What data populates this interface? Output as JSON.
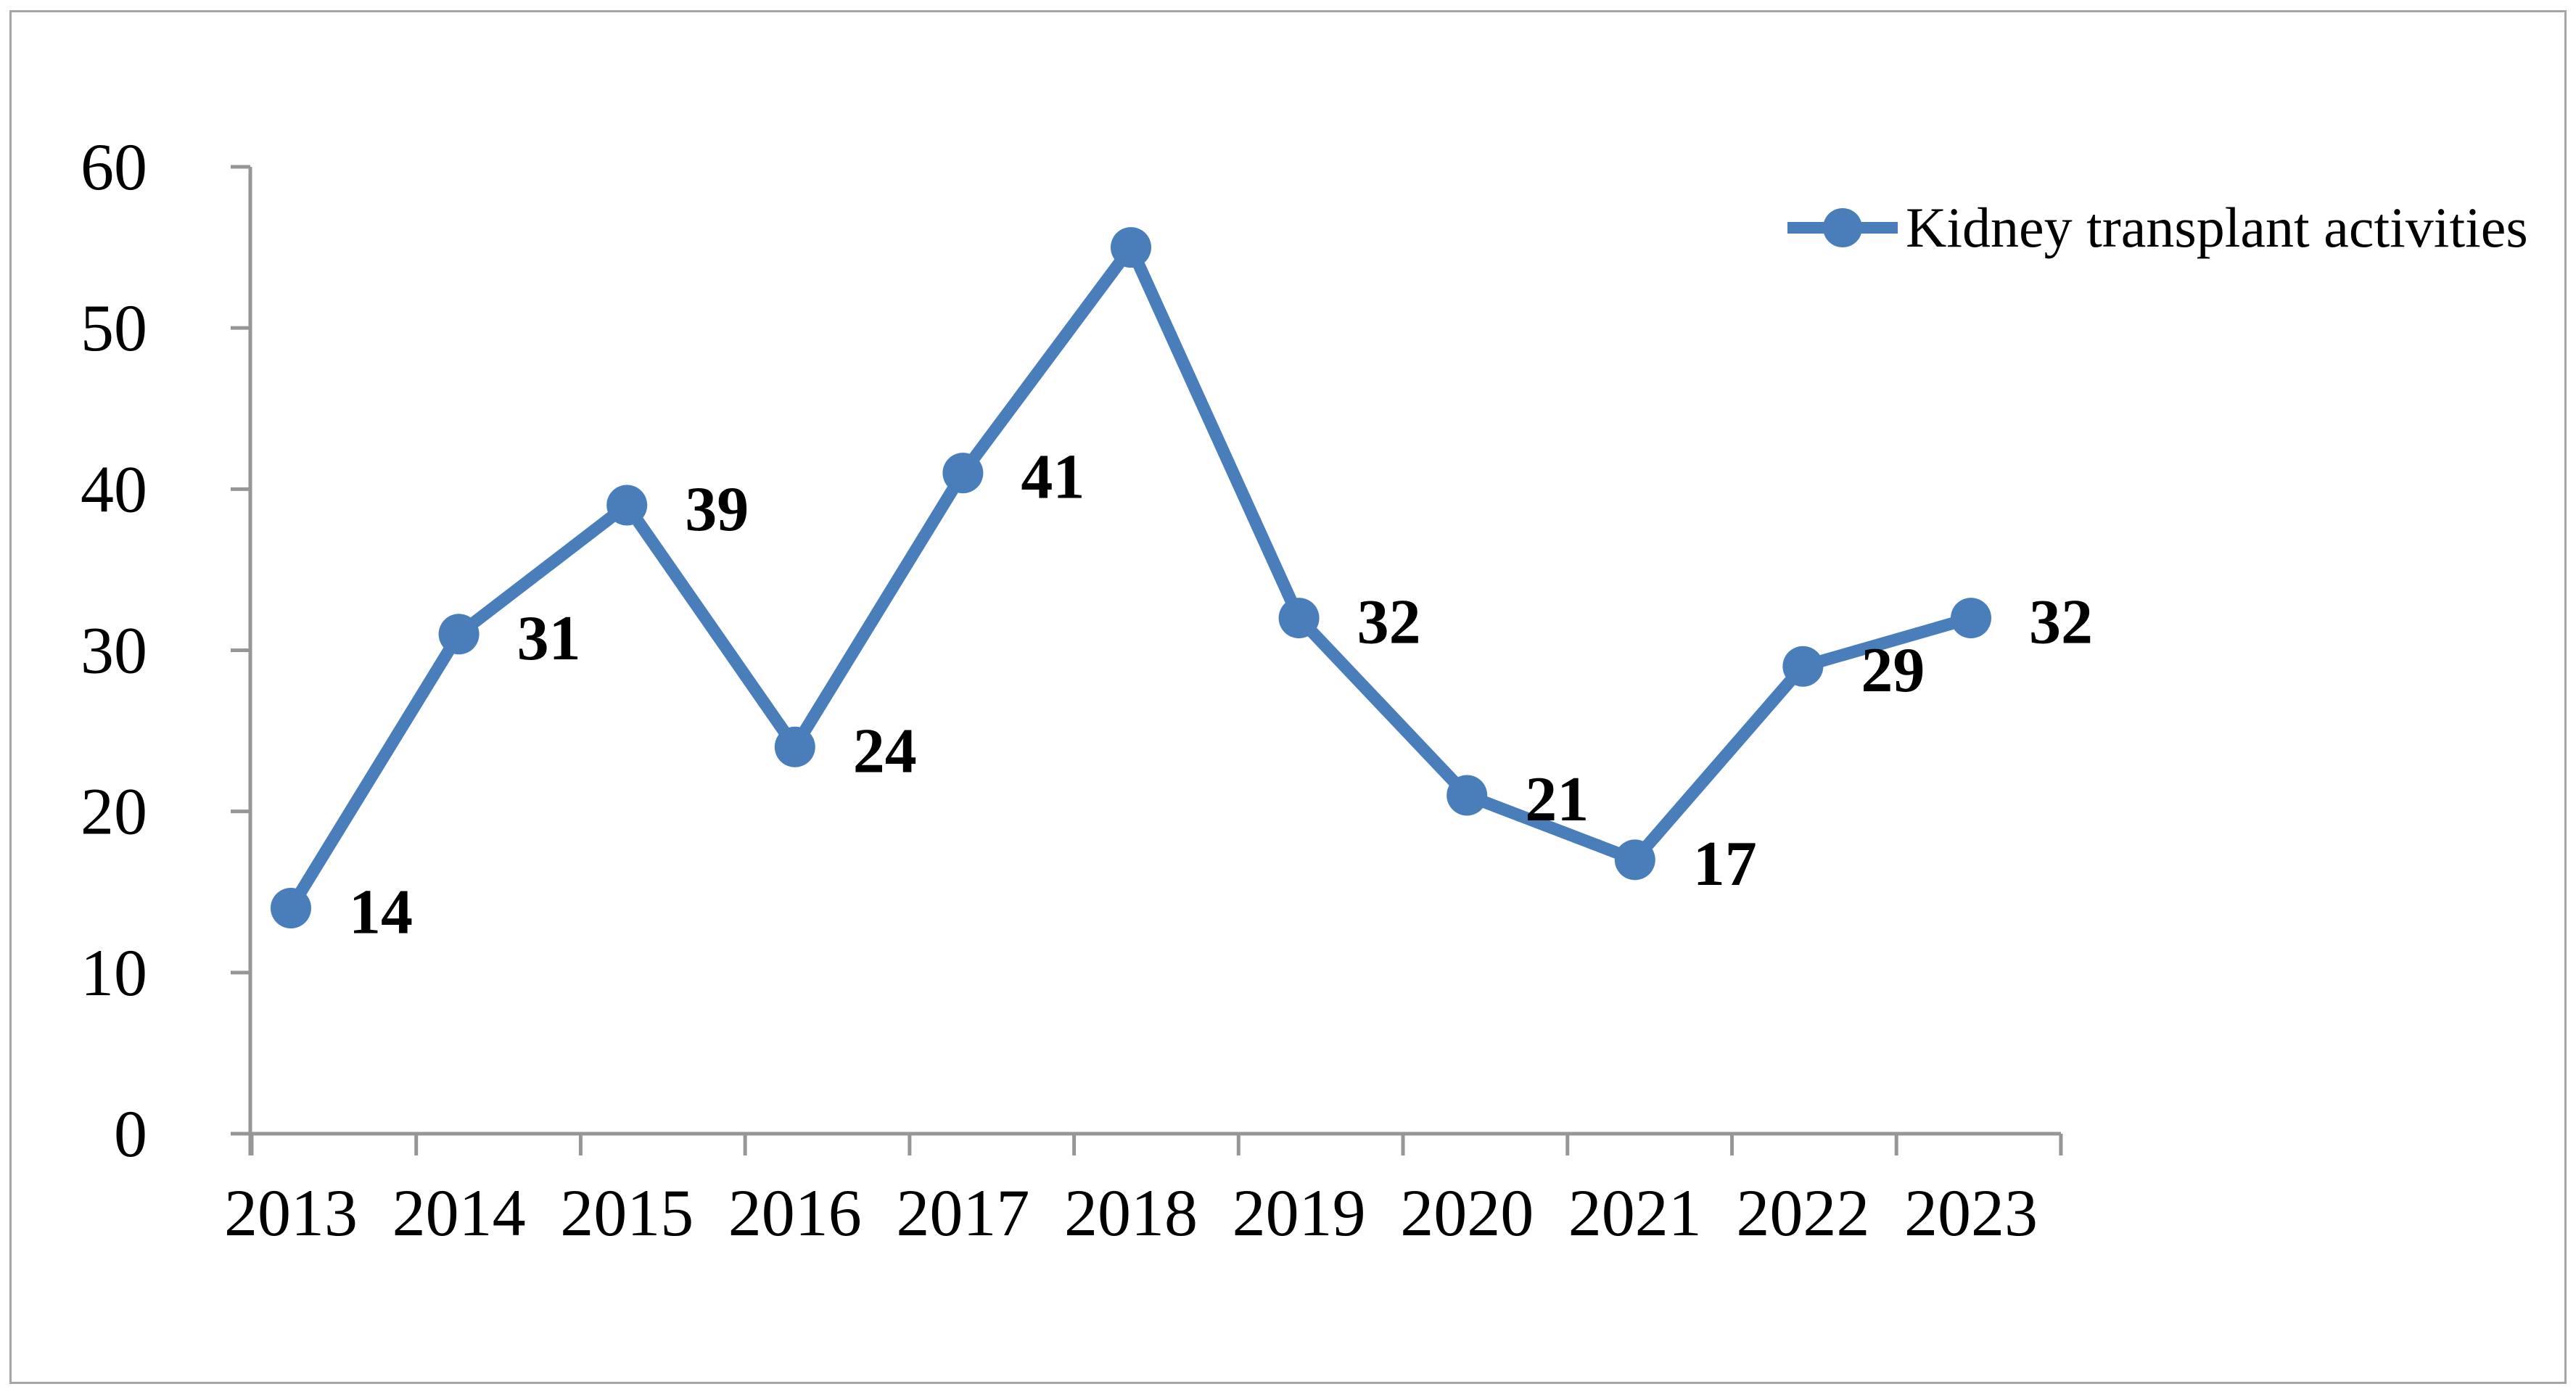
{
  "frame": {
    "border_color": "#a6a6a6",
    "background": "#ffffff"
  },
  "legend": {
    "label": "Kidney transplant activities"
  },
  "chart_data": {
    "type": "line",
    "title": "",
    "xlabel": "",
    "ylabel": "",
    "categories": [
      "2013",
      "2014",
      "2015",
      "2016",
      "2017",
      "2018",
      "2019",
      "2020",
      "2021",
      "2022",
      "2023"
    ],
    "series": [
      {
        "name": "Kidney transplant activities",
        "values": [
          14,
          31,
          39,
          24,
          41,
          55,
          32,
          21,
          17,
          29,
          32
        ],
        "data_labels": [
          "14",
          "31",
          "39",
          "24",
          "41",
          "",
          "32",
          "21",
          "17",
          "29",
          "32"
        ],
        "color": "#4a7ebb"
      }
    ],
    "ylim": [
      0,
      60
    ],
    "yticks": [
      0,
      10,
      20,
      30,
      40,
      50,
      60
    ],
    "grid": false,
    "legend_position": "top-right",
    "axis_color": "#969696",
    "label_color": "#000000"
  }
}
